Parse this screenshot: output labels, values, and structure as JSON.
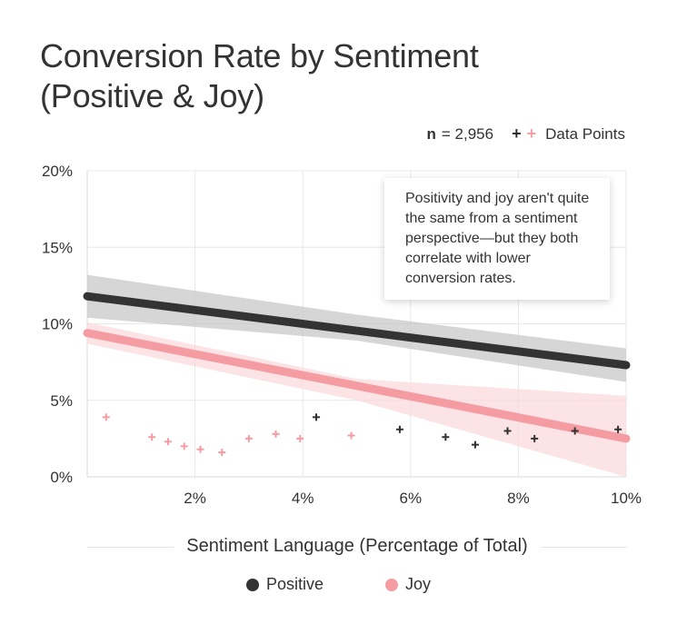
{
  "chart_data": {
    "type": "scatter",
    "title": "Conversion Rate by Sentiment (Positive & Joy)",
    "title_lines": [
      "Conversion Rate by Sentiment",
      "(Positive & Joy)"
    ],
    "n_label": "n",
    "n_value": "= 2,956",
    "points_legend": "Data Points",
    "xlabel": "Sentiment Language (Percentage of Total)",
    "xlim": [
      0,
      10
    ],
    "ylim": [
      0,
      20
    ],
    "x_ticks": [
      {
        "value": 2,
        "label": "2%"
      },
      {
        "value": 4,
        "label": "4%"
      },
      {
        "value": 6,
        "label": "6%"
      },
      {
        "value": 8,
        "label": "8%"
      },
      {
        "value": 10,
        "label": "10%"
      }
    ],
    "y_ticks": [
      {
        "value": 0,
        "label": "0%"
      },
      {
        "value": 5,
        "label": "5%"
      },
      {
        "value": 10,
        "label": "10%"
      },
      {
        "value": 15,
        "label": "15%"
      },
      {
        "value": 20,
        "label": "20%"
      }
    ],
    "grid": true,
    "annotation": "Positivity and joy aren't quite the same from a sentiment perspective—but they both correlate with lower conversion rates.",
    "legend_position": "bottom",
    "series": [
      {
        "name": "Positive",
        "color": "#333333",
        "band_color": "#c8c8c8",
        "trend": [
          [
            0,
            11.8
          ],
          [
            10,
            7.3
          ]
        ],
        "band": [
          [
            0,
            10.4,
            13.2
          ],
          [
            5,
            8.9,
            10.6
          ],
          [
            10,
            6.2,
            8.4
          ]
        ],
        "points": [
          [
            4.25,
            3.9
          ],
          [
            5.8,
            3.1
          ],
          [
            6.65,
            2.6
          ],
          [
            7.2,
            2.1
          ],
          [
            7.8,
            3.0
          ],
          [
            8.3,
            2.5
          ],
          [
            9.05,
            3.0
          ],
          [
            9.85,
            3.1
          ]
        ]
      },
      {
        "name": "Joy",
        "color": "#f49ca2",
        "band_color": "#fbd9dc",
        "trend": [
          [
            0,
            9.4
          ],
          [
            10,
            2.5
          ]
        ],
        "band": [
          [
            0,
            8.7,
            10.1
          ],
          [
            5,
            5.0,
            6.4
          ],
          [
            10,
            -0.5,
            5.3
          ]
        ],
        "points": [
          [
            0.35,
            3.9
          ],
          [
            1.2,
            2.6
          ],
          [
            1.5,
            2.3
          ],
          [
            1.8,
            2.0
          ],
          [
            2.1,
            1.8
          ],
          [
            2.5,
            1.6
          ],
          [
            3.0,
            2.5
          ],
          [
            3.5,
            2.8
          ],
          [
            3.95,
            2.5
          ],
          [
            4.9,
            2.7
          ]
        ]
      }
    ]
  }
}
